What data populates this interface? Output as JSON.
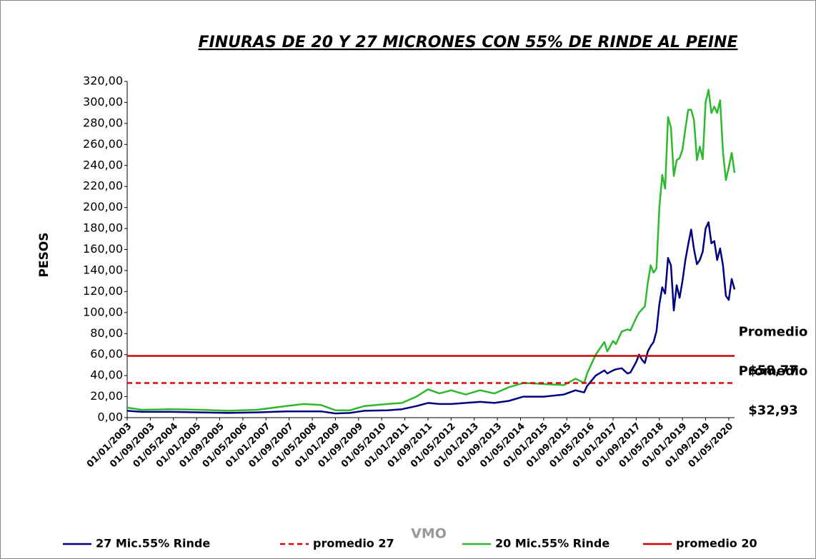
{
  "chart_data": {
    "type": "line",
    "title": "FINURAS DE 20 Y 27 MICRONES CON 55% DE RINDE AL PEINE",
    "y_label": "PESOS",
    "x_label": "VMO",
    "x": [
      "01/01/2003",
      "01/06/2003",
      "01/04/2004",
      "01/02/2005",
      "01/12/2005",
      "01/10/2006",
      "01/08/2007",
      "01/02/2008",
      "01/08/2008",
      "01/01/2009",
      "01/06/2009",
      "01/11/2009",
      "01/07/2010",
      "01/12/2010",
      "01/05/2011",
      "01/09/2011",
      "01/01/2012",
      "01/05/2012",
      "01/10/2012",
      "01/03/2013",
      "01/08/2013",
      "01/01/2014",
      "01/06/2014",
      "01/01/2015",
      "01/08/2015",
      "01/12/2015",
      "01/03/2016",
      "01/04/2016",
      "01/07/2016",
      "01/10/2016",
      "01/11/2016",
      "01/01/2017",
      "01/02/2017",
      "01/04/2017",
      "01/06/2017",
      "01/07/2017",
      "01/09/2017",
      "01/10/2017",
      "01/11/2017",
      "01/12/2017",
      "01/01/2018",
      "01/02/2018",
      "01/03/2018",
      "01/04/2018",
      "01/05/2018",
      "01/06/2018",
      "01/07/2018",
      "01/08/2018",
      "01/09/2018",
      "01/10/2018",
      "01/11/2018",
      "01/12/2018",
      "01/01/2019",
      "01/02/2019",
      "01/03/2019",
      "01/04/2019",
      "01/05/2019",
      "01/06/2019",
      "01/07/2019",
      "01/08/2019",
      "01/09/2019",
      "01/10/2019",
      "01/11/2019",
      "01/12/2019",
      "01/01/2020",
      "01/02/2020",
      "01/03/2020",
      "01/04/2020",
      "01/05/2020",
      "01/06/2020",
      "01/07/2020"
    ],
    "series": [
      {
        "name": "27 Mic.55% Rinde",
        "color": "#000080",
        "values": [
          6.5,
          5.5,
          5.5,
          5,
          4.5,
          5,
          6,
          6,
          6,
          4,
          4.5,
          6.5,
          7,
          8,
          11,
          14,
          13,
          13,
          14,
          15,
          14,
          16,
          20,
          20,
          22,
          26,
          24,
          30,
          40,
          45,
          42,
          45,
          46,
          47,
          42,
          43,
          53,
          60,
          55,
          52,
          63,
          68,
          72,
          82,
          108,
          124,
          118,
          152,
          145,
          102,
          126,
          114,
          130,
          150,
          165,
          179,
          160,
          146,
          150,
          158,
          180,
          186,
          166,
          168,
          150,
          161,
          145,
          116,
          112,
          132,
          122
        ]
      },
      {
        "name": "promedio 27",
        "color": "#e00000",
        "dashed": true,
        "value": 32.93,
        "value_label": [
          "Promedio",
          "$32,93"
        ]
      },
      {
        "name": "20 Mic.55% Rinde",
        "color": "#2eb82e",
        "values": [
          9.5,
          7.5,
          8,
          7.5,
          6.5,
          7.5,
          11,
          13,
          12,
          7,
          7,
          11,
          13,
          14,
          20,
          27,
          23,
          26,
          22,
          26,
          23,
          29,
          33,
          32,
          31,
          37,
          33,
          42,
          60,
          72,
          63,
          73,
          70,
          82,
          84,
          83,
          95,
          100,
          103,
          106,
          128,
          145,
          138,
          142,
          200,
          231,
          218,
          286,
          276,
          230,
          245,
          247,
          255,
          275,
          293,
          293,
          283,
          245,
          258,
          246,
          300,
          312,
          290,
          296,
          290,
          302,
          253,
          226,
          238,
          252,
          233
        ]
      },
      {
        "name": "promedio 20",
        "color": "#cc0000",
        "dashed": false,
        "value": 58.77,
        "value_label": [
          "Promedio",
          "$58,77"
        ]
      }
    ],
    "xlim": [
      "01/01/2003",
      "01/07/2020"
    ],
    "xticks": [
      "01/01/2003",
      "01/09/2003",
      "01/05/2004",
      "01/01/2005",
      "01/09/2005",
      "01/05/2006",
      "01/01/2007",
      "01/09/2007",
      "01/05/2008",
      "01/01/2009",
      "01/09/2009",
      "01/05/2010",
      "01/01/2011",
      "01/09/2011",
      "01/05/2012",
      "01/01/2013",
      "01/09/2013",
      "01/05/2014",
      "01/01/2015",
      "01/09/2015",
      "01/05/2016",
      "01/01/2017",
      "01/09/2017",
      "01/05/2018",
      "01/01/2019",
      "01/09/2019",
      "01/05/2020"
    ],
    "ylim": [
      0,
      320
    ],
    "yticks": [
      {
        "value": 0,
        "label": "0,00"
      },
      {
        "value": 20,
        "label": "20,00"
      },
      {
        "value": 40,
        "label": "40,00"
      },
      {
        "value": 60,
        "label": "60,00"
      },
      {
        "value": 80,
        "label": "80,00"
      },
      {
        "value": 100,
        "label": "100,00"
      },
      {
        "value": 120,
        "label": "120,00"
      },
      {
        "value": 140,
        "label": "140,00"
      },
      {
        "value": 160,
        "label": "160,00"
      },
      {
        "value": 180,
        "label": "180,00"
      },
      {
        "value": 200,
        "label": "200,00"
      },
      {
        "value": 220,
        "label": "220,00"
      },
      {
        "value": 240,
        "label": "240,00"
      },
      {
        "value": 260,
        "label": "260,00"
      },
      {
        "value": 280,
        "label": "280,00"
      },
      {
        "value": 300,
        "label": "300,00"
      },
      {
        "value": 320,
        "label": "320,00"
      }
    ],
    "grid": false,
    "legend": "bottom"
  }
}
